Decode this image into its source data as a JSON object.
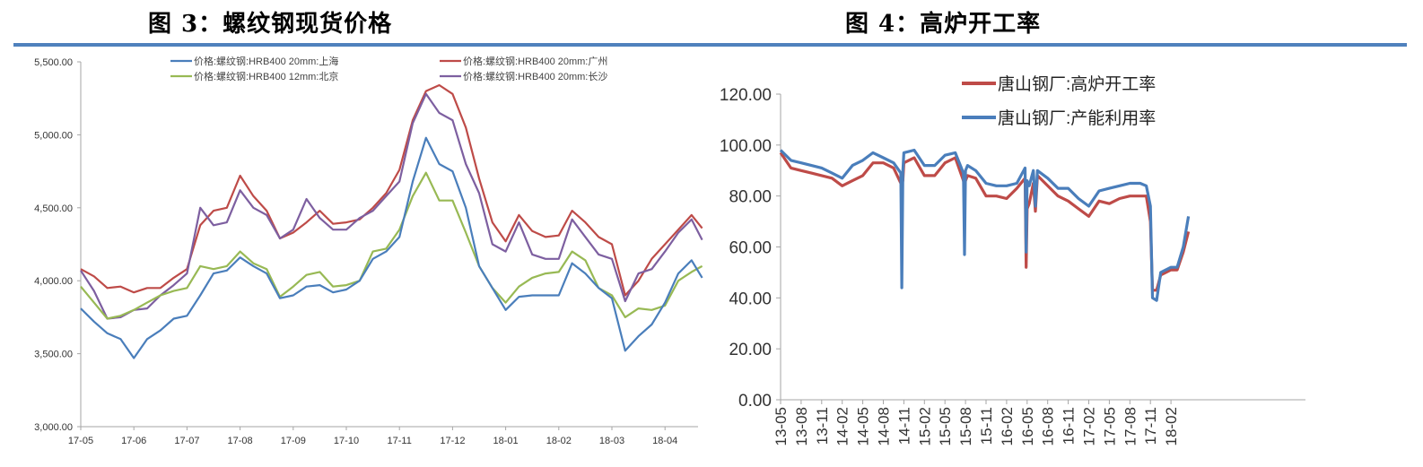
{
  "titles": {
    "left": "图 3：螺纹钢现货价格",
    "right": "图 4：高炉开工率"
  },
  "colors": {
    "rule": "#4f81bd",
    "axis": "#a6a6a6"
  },
  "chart_data": [
    {
      "type": "line",
      "title": "图 3：螺纹钢现货价格",
      "xlabel": "",
      "ylabel": "",
      "ylim": [
        3000,
        5500
      ],
      "yticks": [
        "5,500.00",
        "5,000.00",
        "4,500.00",
        "4,000.00",
        "3,500.00",
        "3,000.00"
      ],
      "ytick_values": [
        5500,
        5000,
        4500,
        4000,
        3500,
        3000
      ],
      "categories": [
        "17-05",
        "17-06",
        "17-07",
        "17-08",
        "17-09",
        "17-10",
        "17-11",
        "17-12",
        "18-01",
        "18-02",
        "18-03",
        "18-04"
      ],
      "grid": false,
      "legend_position": "top",
      "x": [
        0,
        0.25,
        0.5,
        0.75,
        1.0,
        1.25,
        1.5,
        1.75,
        2.0,
        2.25,
        2.5,
        2.75,
        3.0,
        3.25,
        3.5,
        3.75,
        4.0,
        4.25,
        4.5,
        4.75,
        5.0,
        5.25,
        5.5,
        5.75,
        6.0,
        6.25,
        6.5,
        6.75,
        7.0,
        7.25,
        7.5,
        7.75,
        8.0,
        8.25,
        8.5,
        8.75,
        9.0,
        9.25,
        9.5,
        9.75,
        10.0,
        10.25,
        10.5,
        10.75,
        11.0,
        11.25,
        11.5,
        11.7
      ],
      "series": [
        {
          "name": "价格:螺纹钢:HRB400 20mm:上海",
          "color": "#4a7ebb",
          "values": [
            3810,
            3720,
            3640,
            3600,
            3470,
            3600,
            3660,
            3740,
            3760,
            3900,
            4050,
            4070,
            4160,
            4100,
            4050,
            3880,
            3900,
            3960,
            3970,
            3920,
            3940,
            4000,
            4150,
            4200,
            4300,
            4680,
            4980,
            4800,
            4750,
            4500,
            4100,
            3950,
            3800,
            3890,
            3900,
            3900,
            3900,
            4120,
            4050,
            3950,
            3880,
            3520,
            3620,
            3700,
            3850,
            4050,
            4140,
            4020
          ]
        },
        {
          "name": "价格:螺纹钢:HRB400 20mm:广州",
          "color": "#be4b48",
          "values": [
            4080,
            4030,
            3950,
            3960,
            3920,
            3950,
            3950,
            4020,
            4080,
            4380,
            4480,
            4500,
            4720,
            4580,
            4480,
            4290,
            4330,
            4400,
            4480,
            4390,
            4400,
            4420,
            4500,
            4600,
            4760,
            5100,
            5300,
            5340,
            5280,
            5050,
            4700,
            4400,
            4270,
            4450,
            4340,
            4300,
            4310,
            4480,
            4400,
            4300,
            4250,
            3900,
            4000,
            4150,
            4250,
            4350,
            4450,
            4360
          ]
        },
        {
          "name": "价格:螺纹钢:HRB400 12mm:北京",
          "color": "#98b954",
          "values": [
            3960,
            3850,
            3740,
            3760,
            3800,
            3850,
            3900,
            3930,
            3950,
            4100,
            4080,
            4100,
            4200,
            4120,
            4080,
            3890,
            3960,
            4040,
            4060,
            3960,
            3970,
            4000,
            4200,
            4220,
            4350,
            4580,
            4740,
            4550,
            4550,
            4330,
            4100,
            3950,
            3850,
            3960,
            4020,
            4050,
            4060,
            4200,
            4140,
            3950,
            3900,
            3750,
            3810,
            3800,
            3830,
            4000,
            4060,
            4100
          ]
        },
        {
          "name": "价格:螺纹钢:HRB400 20mm:长沙",
          "color": "#7d5fa0",
          "values": [
            4070,
            3930,
            3740,
            3750,
            3800,
            3810,
            3900,
            3970,
            4050,
            4500,
            4380,
            4400,
            4620,
            4500,
            4450,
            4290,
            4350,
            4560,
            4430,
            4350,
            4350,
            4430,
            4480,
            4580,
            4680,
            5080,
            5280,
            5150,
            5100,
            4800,
            4600,
            4250,
            4200,
            4400,
            4180,
            4150,
            4150,
            4420,
            4300,
            4180,
            4150,
            3860,
            4050,
            4080,
            4200,
            4330,
            4420,
            4280
          ]
        }
      ]
    },
    {
      "type": "line",
      "title": "图 4：高炉开工率",
      "xlabel": "",
      "ylabel": "",
      "ylim": [
        0,
        120
      ],
      "yticks": [
        "120.00",
        "100.00",
        "80.00",
        "60.00",
        "40.00",
        "20.00",
        "0.00"
      ],
      "ytick_values": [
        120,
        100,
        80,
        60,
        40,
        20,
        0
      ],
      "categories": [
        "13-05",
        "13-08",
        "13-11",
        "14-02",
        "14-05",
        "14-08",
        "14-11",
        "15-02",
        "15-05",
        "15-08",
        "15-11",
        "16-02",
        "16-05",
        "16-08",
        "16-11",
        "17-02",
        "17-05",
        "17-08",
        "17-11",
        "18-02"
      ],
      "grid": false,
      "legend_position": "top-right",
      "x": [
        0,
        0.5,
        1.0,
        1.5,
        2.0,
        2.5,
        3.0,
        3.5,
        4.0,
        4.5,
        5.0,
        5.5,
        5.85,
        5.9,
        5.95,
        6.0,
        6.5,
        7.0,
        7.5,
        8.0,
        8.5,
        8.9,
        8.95,
        9.0,
        9.1,
        9.5,
        10.0,
        10.5,
        11.0,
        11.5,
        11.9,
        11.95,
        12.0,
        12.1,
        12.3,
        12.4,
        12.5,
        13.0,
        13.5,
        14.0,
        14.5,
        15.0,
        15.5,
        16.0,
        16.5,
        17.0,
        17.5,
        17.8,
        18.0,
        18.1,
        18.3,
        18.5,
        19.0,
        19.3,
        19.6,
        19.85
      ],
      "series": [
        {
          "name": "唐山钢厂:高炉开工率",
          "color": "#be4b48",
          "values": [
            97,
            91,
            90,
            89,
            88,
            87,
            84,
            86,
            88,
            93,
            93,
            91,
            85,
            85,
            86,
            93,
            95,
            88,
            88,
            93,
            95,
            86,
            84,
            86,
            88,
            87,
            80,
            80,
            79,
            83,
            87,
            52,
            75,
            77,
            85,
            74,
            88,
            84,
            80,
            78,
            75,
            72,
            78,
            77,
            79,
            80,
            80,
            80,
            70,
            43,
            43,
            49,
            51,
            51,
            58,
            66
          ]
        },
        {
          "name": "唐山钢厂:产能利用率",
          "color": "#4a7ebb",
          "values": [
            98,
            94,
            93,
            92,
            91,
            89,
            87,
            92,
            94,
            97,
            95,
            93,
            89,
            44,
            90,
            97,
            98,
            92,
            92,
            96,
            97,
            89,
            57,
            90,
            92,
            90,
            85,
            84,
            84,
            85,
            91,
            58,
            86,
            84,
            90,
            76,
            90,
            87,
            83,
            83,
            79,
            76,
            82,
            83,
            84,
            85,
            85,
            84,
            76,
            40,
            39,
            50,
            52,
            52,
            60,
            72
          ]
        }
      ]
    }
  ]
}
